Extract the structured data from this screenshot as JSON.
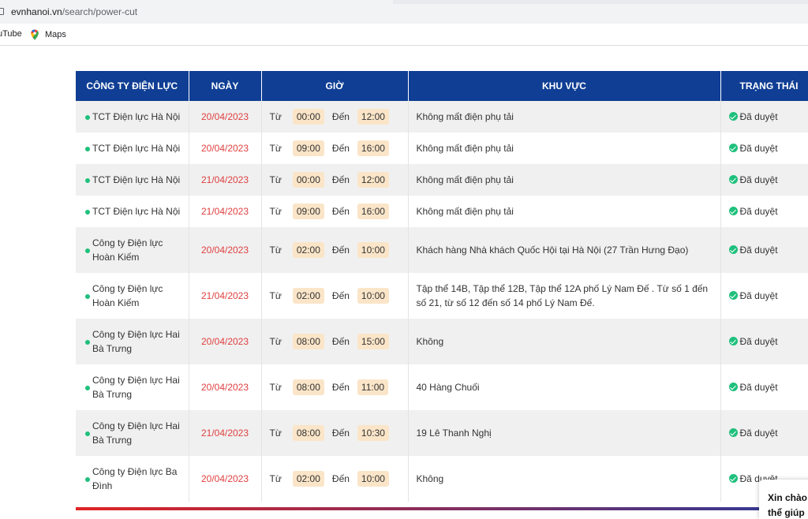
{
  "browser": {
    "url_host": "evnhanoi.vn",
    "url_path": "/search/power-cut",
    "bookmarks": [
      "uTube",
      "Maps"
    ]
  },
  "table": {
    "headers": [
      "CÔNG TY ĐIỆN LỰC",
      "NGÀY",
      "GIỜ",
      "KHU VỰC",
      "TRẠNG THÁI"
    ],
    "rows": [
      {
        "company": "TCT Điện lực Hà Nội",
        "date": "20/04/2023",
        "from_label": "Từ",
        "from": "00:00",
        "to_label": "Đến",
        "to": "12:00",
        "area": "Không mất điện phụ tải",
        "status": "Đã duyệt"
      },
      {
        "company": "TCT Điện lực Hà Nội",
        "date": "20/04/2023",
        "from_label": "Từ",
        "from": "09:00",
        "to_label": "Đến",
        "to": "16:00",
        "area": "Không mất điện phụ tải",
        "status": "Đã duyệt"
      },
      {
        "company": "TCT Điện lực Hà Nội",
        "date": "21/04/2023",
        "from_label": "Từ",
        "from": "00:00",
        "to_label": "Đến",
        "to": "12:00",
        "area": "Không mất điện phụ tải",
        "status": "Đã duyệt"
      },
      {
        "company": "TCT Điện lực Hà Nội",
        "date": "21/04/2023",
        "from_label": "Từ",
        "from": "09:00",
        "to_label": "Đến",
        "to": "16:00",
        "area": "Không mất điện phụ tải",
        "status": "Đã duyệt"
      },
      {
        "company": "Công ty Điện lực Hoàn Kiếm",
        "date": "20/04/2023",
        "from_label": "Từ",
        "from": "02:00",
        "to_label": "Đến",
        "to": "10:00",
        "area": "Khách hàng Nhà khách Quốc Hội tại Hà Nội (27 Trần Hưng Đạo)",
        "status": "Đã duyệt"
      },
      {
        "company": "Công ty Điện lực Hoàn Kiếm",
        "date": "21/04/2023",
        "from_label": "Từ",
        "from": "02:00",
        "to_label": "Đến",
        "to": "10:00",
        "area": "Tập thể 14B, Tập thể 12B, Tập thể 12A phố Lý Nam Đế . Từ số 1 đến số 21, từ số 12 đến số 14 phố Lý Nam Đế.",
        "status": "Đã duyệt"
      },
      {
        "company": "Công ty Điện lực Hai Bà Trưng",
        "date": "20/04/2023",
        "from_label": "Từ",
        "from": "08:00",
        "to_label": "Đến",
        "to": "15:00",
        "area": "Không",
        "status": "Đã duyệt"
      },
      {
        "company": "Công ty Điện lực Hai Bà Trưng",
        "date": "20/04/2023",
        "from_label": "Từ",
        "from": "08:00",
        "to_label": "Đến",
        "to": "11:00",
        "area": "40 Hàng Chuối",
        "status": "Đã duyệt"
      },
      {
        "company": "Công ty Điện lực Hai Bà Trưng",
        "date": "21/04/2023",
        "from_label": "Từ",
        "from": "08:00",
        "to_label": "Đến",
        "to": "10:30",
        "area": "19 Lê Thanh Nghị",
        "status": "Đã duyệt"
      },
      {
        "company": "Công ty Điện lực Ba Đình",
        "date": "20/04/2023",
        "from_label": "Từ",
        "from": "02:00",
        "to_label": "Đến",
        "to": "10:00",
        "area": "Không",
        "status": "Đã duyệt"
      }
    ]
  },
  "chat_widget": {
    "line1": "Xin chào",
    "line2": "thể giúp"
  },
  "colors": {
    "header_bg": "#0f3e94",
    "date_red": "#e04040",
    "status_green": "#1ec07c",
    "time_chip": "#fbe5c8"
  }
}
